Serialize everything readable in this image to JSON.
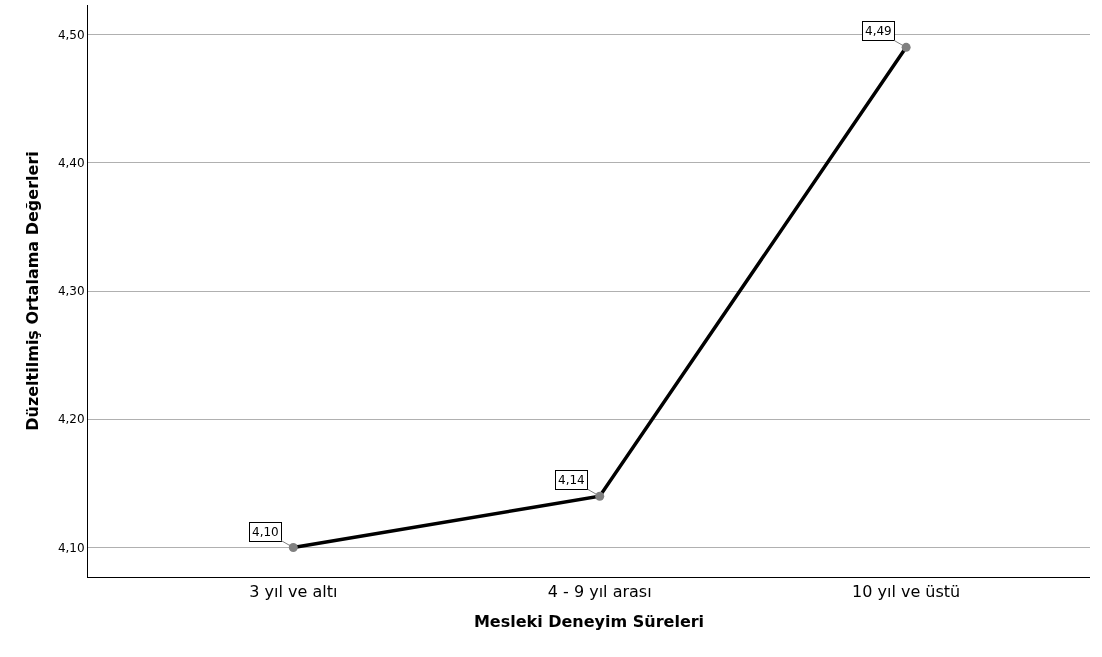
{
  "chart_data": {
    "type": "line",
    "xlabel": "Mesleki Deneyim Süreleri",
    "ylabel": "Düzeltilmiş Ortalama Değerleri",
    "categories": [
      "3 yıl ve altı",
      "4 - 9 yıl arası",
      "10 yıl ve üstü"
    ],
    "series": [
      {
        "color": "#000000",
        "values": [
          4.1,
          4.14,
          4.49
        ],
        "value_labels": [
          "4,10",
          "4,14",
          "4,49"
        ]
      }
    ],
    "ylim": [
      4.077,
      4.523
    ],
    "yticks": [
      {
        "value": 4.1,
        "label": "4,10"
      },
      {
        "value": 4.2,
        "label": "4,20"
      },
      {
        "value": 4.3,
        "label": "4,30"
      },
      {
        "value": 4.4,
        "label": "4,40"
      },
      {
        "value": 4.5,
        "label": "4,50"
      }
    ],
    "grid": "y",
    "marker": "circle"
  }
}
